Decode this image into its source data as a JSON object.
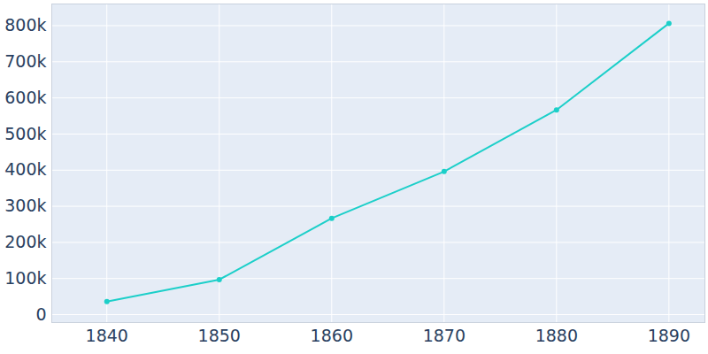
{
  "chart_data": {
    "type": "line",
    "x": [
      1840,
      1850,
      1860,
      1870,
      1880,
      1890
    ],
    "series": [
      {
        "color": "#1ccfc9",
        "marker": "circle",
        "line_style": "solid",
        "values": [
          36233,
          96838,
          266661,
          396099,
          566663,
          806343
        ]
      }
    ],
    "xlim": [
      1835.1,
      1893.2
    ],
    "xticks": [
      1840,
      1850,
      1860,
      1870,
      1880,
      1890
    ],
    "ylim": [
      -22000,
      860000
    ],
    "yticks": [
      0,
      {
        "value": 100000,
        "label": "100k"
      },
      {
        "value": 200000,
        "label": "200k"
      },
      {
        "value": 300000,
        "label": "300k"
      },
      {
        "value": 400000,
        "label": "400k"
      },
      {
        "value": 500000,
        "label": "500k"
      },
      {
        "value": 600000,
        "label": "600k"
      },
      {
        "value": 700000,
        "label": "700k"
      },
      {
        "value": 800000,
        "label": "800k"
      }
    ],
    "grid": true
  }
}
